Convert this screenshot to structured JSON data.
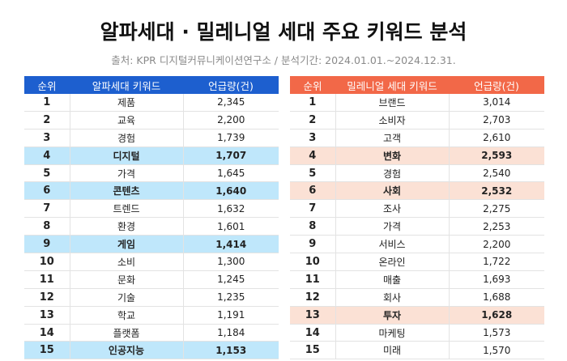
{
  "title": "알파세대 · 밀레니얼 세대 주요 키워드 분석",
  "source": "출처: KPR 디지털커뮤니케이션연구소 / 분석기간: 2024.01.01.~2024.12.31.",
  "colors": {
    "alpha_header": "#1d5fcf",
    "alpha_highlight": "#bfe7fb",
    "millennial_header": "#f26848",
    "millennial_highlight": "#fbe1d5"
  },
  "alpha": {
    "headers": [
      "순위",
      "알파세대 키워드",
      "언급량(건)"
    ],
    "rows": [
      {
        "rank": "1",
        "keyword": "제품",
        "count": "2,345",
        "highlight": false
      },
      {
        "rank": "2",
        "keyword": "교육",
        "count": "2,200",
        "highlight": false
      },
      {
        "rank": "3",
        "keyword": "경험",
        "count": "1,739",
        "highlight": false
      },
      {
        "rank": "4",
        "keyword": "디지털",
        "count": "1,707",
        "highlight": true
      },
      {
        "rank": "5",
        "keyword": "가격",
        "count": "1,645",
        "highlight": false
      },
      {
        "rank": "6",
        "keyword": "콘텐츠",
        "count": "1,640",
        "highlight": true
      },
      {
        "rank": "7",
        "keyword": "트렌드",
        "count": "1,632",
        "highlight": false
      },
      {
        "rank": "8",
        "keyword": "환경",
        "count": "1,601",
        "highlight": false
      },
      {
        "rank": "9",
        "keyword": "게임",
        "count": "1,414",
        "highlight": true
      },
      {
        "rank": "10",
        "keyword": "소비",
        "count": "1,300",
        "highlight": false
      },
      {
        "rank": "11",
        "keyword": "문화",
        "count": "1,245",
        "highlight": false
      },
      {
        "rank": "12",
        "keyword": "기술",
        "count": "1,235",
        "highlight": false
      },
      {
        "rank": "13",
        "keyword": "학교",
        "count": "1,191",
        "highlight": false
      },
      {
        "rank": "14",
        "keyword": "플랫폼",
        "count": "1,184",
        "highlight": false
      },
      {
        "rank": "15",
        "keyword": "인공지능",
        "count": "1,153",
        "highlight": true
      }
    ]
  },
  "millennial": {
    "headers": [
      "순위",
      "밀레니얼 세대 키워드",
      "언급량(건)"
    ],
    "rows": [
      {
        "rank": "1",
        "keyword": "브랜드",
        "count": "3,014",
        "highlight": false
      },
      {
        "rank": "2",
        "keyword": "소비자",
        "count": "2,703",
        "highlight": false
      },
      {
        "rank": "3",
        "keyword": "고객",
        "count": "2,610",
        "highlight": false
      },
      {
        "rank": "4",
        "keyword": "변화",
        "count": "2,593",
        "highlight": true
      },
      {
        "rank": "5",
        "keyword": "경험",
        "count": "2,540",
        "highlight": false
      },
      {
        "rank": "6",
        "keyword": "사회",
        "count": "2,532",
        "highlight": true
      },
      {
        "rank": "7",
        "keyword": "조사",
        "count": "2,275",
        "highlight": false
      },
      {
        "rank": "8",
        "keyword": "가격",
        "count": "2,253",
        "highlight": false
      },
      {
        "rank": "9",
        "keyword": "서비스",
        "count": "2,200",
        "highlight": false
      },
      {
        "rank": "10",
        "keyword": "온라인",
        "count": "1,722",
        "highlight": false
      },
      {
        "rank": "11",
        "keyword": "매출",
        "count": "1,693",
        "highlight": false
      },
      {
        "rank": "12",
        "keyword": "회사",
        "count": "1,688",
        "highlight": false
      },
      {
        "rank": "13",
        "keyword": "투자",
        "count": "1,628",
        "highlight": true
      },
      {
        "rank": "14",
        "keyword": "마케팅",
        "count": "1,573",
        "highlight": false
      },
      {
        "rank": "15",
        "keyword": "미래",
        "count": "1,570",
        "highlight": false
      }
    ]
  }
}
